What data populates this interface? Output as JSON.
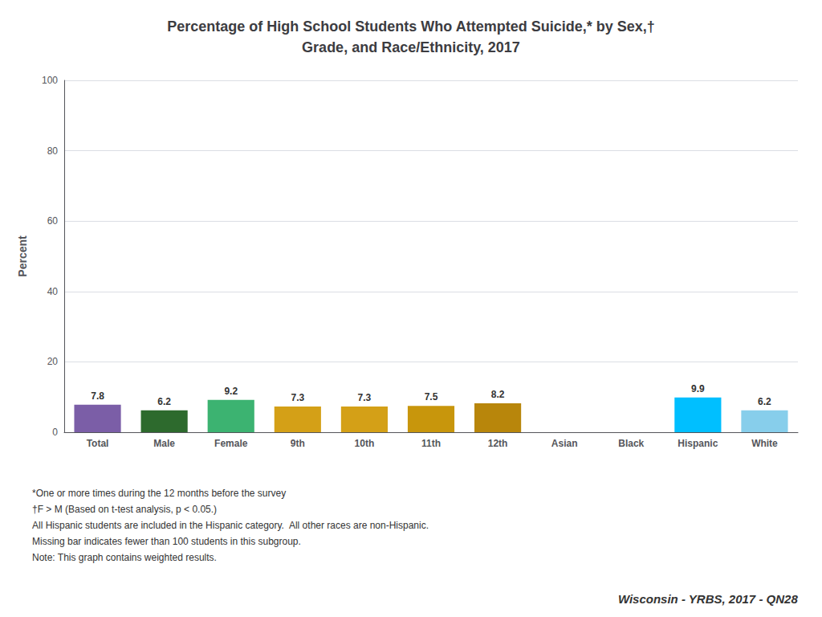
{
  "chart_data": {
    "type": "bar",
    "title": "Percentage of High School Students Who Attempted Suicide,* by Sex,†\nGrade, and Race/Ethnicity, 2017",
    "categories": [
      "Total",
      "Male",
      "Female",
      "9th",
      "10th",
      "11th",
      "12th",
      "Asian",
      "Black",
      "Hispanic",
      "White"
    ],
    "values": [
      7.8,
      6.2,
      9.2,
      7.3,
      7.3,
      7.5,
      8.2,
      null,
      null,
      9.9,
      6.2
    ],
    "colors": [
      "#7B5EA7",
      "#2D6A2D",
      "#3CB371",
      "#D4A017",
      "#D4A017",
      "#C8960C",
      "#B8860B",
      null,
      null,
      "#00BFFF",
      "#87CEEB"
    ],
    "ylabel": "Percent",
    "ylim": [
      0,
      100
    ],
    "yticks": [
      0,
      20,
      40,
      60,
      80,
      100
    ],
    "grid": true,
    "data_labels": true,
    "annotations": [
      "*One or more times during the 12 months before the survey",
      "†F > M (Based on t-test analysis, p < 0.05.)",
      "All Hispanic students are included in the Hispanic category.  All other races are non-Hispanic.",
      "Missing bar indicates fewer than 100 students in this subgroup.",
      "Note: This graph contains weighted results.",
      "Wisconsin - YRBS, 2017 - QN28"
    ]
  }
}
